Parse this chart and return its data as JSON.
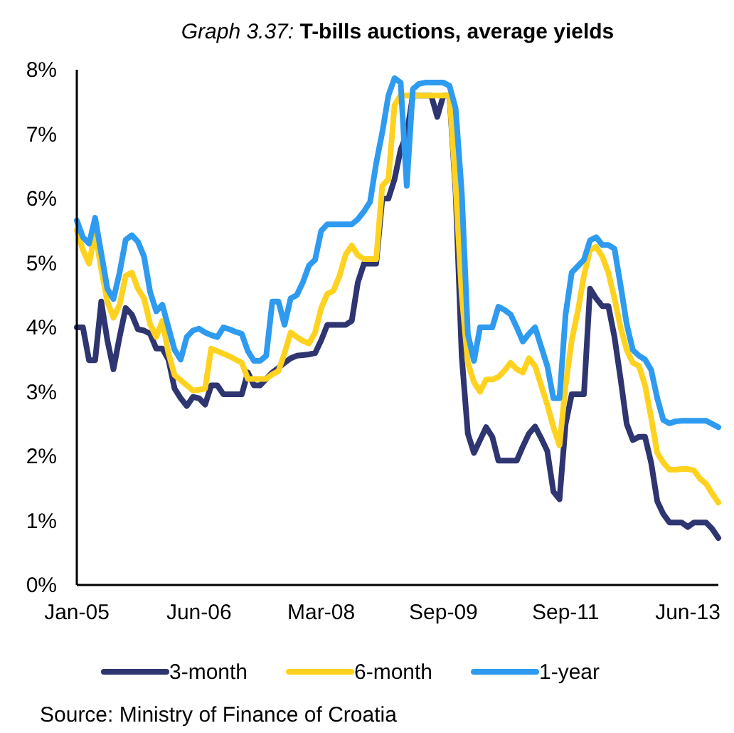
{
  "chart_data": {
    "type": "line",
    "title": "Graph 3.37: T-bills auctions, average yields",
    "categories": [
      "Jan-05",
      null,
      null,
      null,
      null,
      null,
      null,
      null,
      null,
      null,
      null,
      null,
      null,
      null,
      null,
      null,
      null,
      null,
      null,
      null,
      "Jun-06",
      null,
      null,
      null,
      null,
      null,
      null,
      null,
      null,
      null,
      null,
      null,
      null,
      null,
      null,
      null,
      null,
      null,
      null,
      null,
      "Mar-08",
      null,
      null,
      null,
      null,
      null,
      null,
      null,
      null,
      null,
      null,
      null,
      null,
      null,
      null,
      null,
      null,
      null,
      null,
      null,
      "Sep-09",
      null,
      null,
      null,
      null,
      null,
      null,
      null,
      null,
      null,
      null,
      null,
      null,
      null,
      null,
      null,
      null,
      null,
      null,
      null,
      "Sep-11",
      null,
      null,
      null,
      null,
      null,
      null,
      null,
      null,
      null,
      null,
      null,
      null,
      null,
      null,
      null,
      null,
      null,
      null,
      null,
      "Jun-13",
      null,
      null,
      null,
      null,
      null
    ],
    "ylim": [
      0,
      8
    ],
    "yticks": [
      {
        "value": 0,
        "label": "0%"
      },
      {
        "value": 1,
        "label": "1%"
      },
      {
        "value": 2,
        "label": "2%"
      },
      {
        "value": 3,
        "label": "3%"
      },
      {
        "value": 4,
        "label": "4%"
      },
      {
        "value": 5,
        "label": "5%"
      },
      {
        "value": 6,
        "label": "6%"
      },
      {
        "value": 7,
        "label": "7%"
      },
      {
        "value": 8,
        "label": "8%"
      }
    ],
    "grid": false,
    "legend": "bottom",
    "marker": "none",
    "line_style": "solid",
    "annotations": [
      "Source: Ministry of Finance of Croatia"
    ],
    "series": [
      {
        "name": "3-month",
        "color": "#2e3570",
        "values": [
          4.0,
          4.0,
          3.49,
          3.49,
          4.4,
          3.8,
          3.35,
          3.85,
          4.3,
          4.2,
          3.97,
          3.95,
          3.9,
          3.67,
          3.67,
          3.5,
          3.05,
          2.9,
          2.78,
          2.92,
          2.9,
          2.8,
          3.1,
          3.1,
          2.96,
          2.96,
          2.96,
          2.96,
          3.3,
          3.1,
          3.1,
          3.2,
          3.3,
          3.37,
          3.45,
          3.52,
          3.56,
          3.57,
          3.58,
          3.6,
          3.8,
          4.04,
          4.04,
          4.04,
          4.04,
          4.1,
          4.7,
          4.99,
          4.99,
          4.99,
          6.0,
          6.0,
          6.3,
          6.76,
          7.0,
          7.6,
          7.6,
          7.6,
          7.6,
          7.27,
          7.6,
          7.6,
          6.1,
          3.55,
          2.35,
          2.05,
          2.25,
          2.45,
          2.3,
          1.93,
          1.93,
          1.93,
          1.93,
          2.15,
          2.35,
          2.46,
          2.28,
          2.08,
          1.45,
          1.33,
          2.5,
          2.96,
          2.96,
          2.96,
          4.6,
          4.45,
          4.33,
          4.33,
          3.85,
          3.2,
          2.5,
          2.25,
          2.3,
          2.3,
          1.9,
          1.3,
          1.1,
          0.97,
          0.97,
          0.97,
          0.9,
          0.97,
          0.97,
          0.97,
          0.87,
          0.73
        ]
      },
      {
        "name": "6-month",
        "color": "#ffd21f",
        "values": [
          5.51,
          5.2,
          4.99,
          5.48,
          4.9,
          4.4,
          4.15,
          4.35,
          4.8,
          4.85,
          4.6,
          4.45,
          4.05,
          3.85,
          4.1,
          3.6,
          3.26,
          3.18,
          3.1,
          3.02,
          3.03,
          3.05,
          3.67,
          3.63,
          3.59,
          3.55,
          3.5,
          3.45,
          3.2,
          3.2,
          3.2,
          3.2,
          3.27,
          3.32,
          3.6,
          3.92,
          3.85,
          3.79,
          3.75,
          3.92,
          4.3,
          4.52,
          4.57,
          4.8,
          5.13,
          5.27,
          5.12,
          5.06,
          5.06,
          5.06,
          6.2,
          6.3,
          7.45,
          7.6,
          7.6,
          7.6,
          7.6,
          7.6,
          7.6,
          7.6,
          7.6,
          7.6,
          6.2,
          4.5,
          3.45,
          3.15,
          3.0,
          3.19,
          3.19,
          3.23,
          3.33,
          3.45,
          3.35,
          3.3,
          3.52,
          3.4,
          3.1,
          2.8,
          2.45,
          2.17,
          3.1,
          3.8,
          4.25,
          4.8,
          5.2,
          5.25,
          5.1,
          4.85,
          4.45,
          4.0,
          3.65,
          3.45,
          3.4,
          3.1,
          2.6,
          2.05,
          1.9,
          1.79,
          1.79,
          1.8,
          1.8,
          1.78,
          1.65,
          1.57,
          1.42,
          1.28
        ]
      },
      {
        "name": "1-year",
        "color": "#2e9bf0",
        "values": [
          5.66,
          5.4,
          5.3,
          5.7,
          5.15,
          4.6,
          4.44,
          4.85,
          5.36,
          5.43,
          5.33,
          5.1,
          4.55,
          4.25,
          4.35,
          4.0,
          3.65,
          3.5,
          3.85,
          3.95,
          3.98,
          3.92,
          3.88,
          3.85,
          4.0,
          3.97,
          3.93,
          3.9,
          3.63,
          3.48,
          3.48,
          3.56,
          4.4,
          4.4,
          4.04,
          4.45,
          4.5,
          4.7,
          4.96,
          5.05,
          5.5,
          5.6,
          5.6,
          5.6,
          5.6,
          5.6,
          5.68,
          5.8,
          5.95,
          6.55,
          7.03,
          7.6,
          7.87,
          7.8,
          6.2,
          7.7,
          7.78,
          7.8,
          7.8,
          7.8,
          7.8,
          7.75,
          7.4,
          6.1,
          3.9,
          3.48,
          4.0,
          4.0,
          4.0,
          4.32,
          4.27,
          4.2,
          4.0,
          3.78,
          3.9,
          4.0,
          3.7,
          3.4,
          2.9,
          2.9,
          4.2,
          4.85,
          4.95,
          5.05,
          5.35,
          5.4,
          5.28,
          5.28,
          5.22,
          4.65,
          4.05,
          3.65,
          3.56,
          3.5,
          3.34,
          2.9,
          2.56,
          2.51,
          2.54,
          2.55,
          2.55,
          2.55,
          2.55,
          2.55,
          2.5,
          2.45
        ]
      }
    ]
  }
}
